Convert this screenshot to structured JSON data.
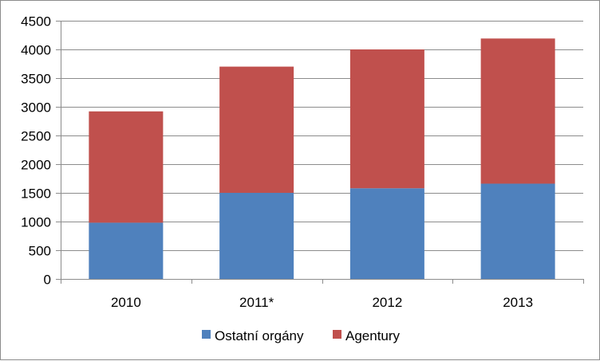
{
  "chart_data": {
    "type": "bar",
    "stacked": true,
    "categories": [
      "2010",
      "2011*",
      "2012",
      "2013"
    ],
    "series": [
      {
        "name": "Ostatní orgány",
        "color": "#4f81bd",
        "values": [
          980,
          1500,
          1580,
          1660
        ]
      },
      {
        "name": "Agentury",
        "color": "#c0504d",
        "values": [
          1940,
          2200,
          2420,
          2530
        ]
      }
    ],
    "ylim": [
      0,
      4500
    ],
    "yticks": [
      "0",
      "500",
      "1000",
      "1500",
      "2000",
      "2500",
      "3000",
      "3500",
      "4000",
      "4500"
    ],
    "grid": true,
    "legend_position": "bottom",
    "title": "",
    "xlabel": "",
    "ylabel": ""
  }
}
